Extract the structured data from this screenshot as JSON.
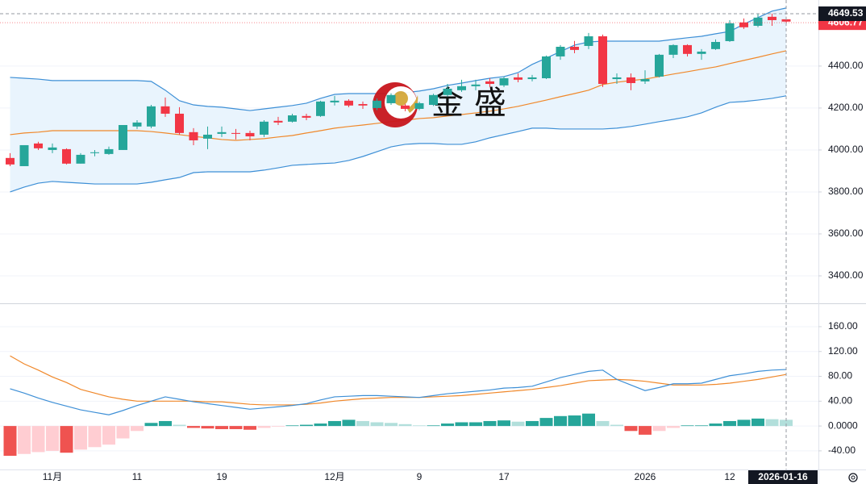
{
  "chart_data": [
    {
      "type": "candlestick",
      "open": [
        3962,
        3923,
        4031,
        4000,
        4004,
        3935,
        3985,
        3981,
        4000,
        4112,
        4112,
        4208,
        4173,
        4085,
        4054,
        4077,
        4081,
        4081,
        4073,
        4139,
        4135,
        4162,
        4162,
        4227,
        4235,
        4219,
        4200,
        4223,
        4212,
        4196,
        4215,
        4262,
        4285,
        4304,
        4327,
        4308,
        4346,
        4338,
        4342,
        4446,
        4492,
        4496,
        4542,
        4338,
        4346,
        4327,
        4350,
        4454,
        4500,
        4458,
        4481,
        4519,
        4608,
        4592,
        4635,
        4623
      ],
      "high": [
        3985,
        4023,
        4039,
        4031,
        4008,
        3985,
        4000,
        4016,
        4119,
        4142,
        4215,
        4250,
        4204,
        4104,
        4112,
        4112,
        4100,
        4092,
        4142,
        4158,
        4173,
        4173,
        4235,
        4258,
        4242,
        4231,
        4246,
        4270,
        4220,
        4230,
        4268,
        4315,
        4335,
        4335,
        4342,
        4350,
        4365,
        4358,
        4450,
        4500,
        4520,
        4558,
        4550,
        4365,
        4365,
        4380,
        4458,
        4504,
        4504,
        4481,
        4527,
        4619,
        4627,
        4650,
        4650,
        4635
      ],
      "low": [
        3923,
        3923,
        4000,
        3985,
        3931,
        3935,
        3970,
        3977,
        4000,
        4100,
        4104,
        4158,
        4073,
        4023,
        4004,
        4062,
        4050,
        4046,
        4062,
        4119,
        4131,
        4142,
        4158,
        4212,
        4204,
        4196,
        4190,
        4215,
        4185,
        4190,
        4210,
        4255,
        4277,
        4285,
        4300,
        4300,
        4323,
        4327,
        4338,
        4430,
        4461,
        4481,
        4300,
        4315,
        4285,
        4315,
        4346,
        4438,
        4446,
        4430,
        4477,
        4515,
        4577,
        4585,
        4592,
        4600
      ],
      "close": [
        3931,
        4023,
        4008,
        4012,
        3935,
        3977,
        3989,
        4004,
        4119,
        4131,
        4208,
        4173,
        4081,
        4046,
        4073,
        4085,
        4077,
        4065,
        4135,
        4131,
        4165,
        4154,
        4231,
        4235,
        4212,
        4212,
        4235,
        4262,
        4196,
        4223,
        4262,
        4292,
        4304,
        4312,
        4315,
        4342,
        4335,
        4346,
        4446,
        4492,
        4477,
        4542,
        4315,
        4346,
        4319,
        4338,
        4454,
        4500,
        4458,
        4469,
        4515,
        4604,
        4585,
        4631,
        4619,
        4612
      ],
      "upper": [
        4346,
        4342,
        4338,
        4331,
        4331,
        4331,
        4331,
        4331,
        4331,
        4331,
        4327,
        4285,
        4235,
        4215,
        4208,
        4204,
        4196,
        4188,
        4196,
        4204,
        4212,
        4223,
        4246,
        4265,
        4269,
        4269,
        4269,
        4269,
        4273,
        4281,
        4292,
        4308,
        4319,
        4331,
        4342,
        4350,
        4369,
        4408,
        4438,
        4469,
        4500,
        4515,
        4519,
        4519,
        4519,
        4519,
        4519,
        4527,
        4535,
        4542,
        4554,
        4565,
        4600,
        4631,
        4662,
        4677
      ],
      "middle": [
        4073,
        4081,
        4085,
        4092,
        4092,
        4092,
        4092,
        4092,
        4092,
        4092,
        4088,
        4081,
        4073,
        4065,
        4058,
        4050,
        4046,
        4050,
        4054,
        4062,
        4069,
        4081,
        4092,
        4104,
        4112,
        4119,
        4127,
        4135,
        4142,
        4150,
        4154,
        4162,
        4169,
        4177,
        4185,
        4196,
        4208,
        4223,
        4238,
        4254,
        4269,
        4285,
        4312,
        4323,
        4331,
        4338,
        4350,
        4362,
        4373,
        4385,
        4396,
        4412,
        4427,
        4442,
        4458,
        4473
      ],
      "lower": [
        3800,
        3823,
        3842,
        3850,
        3846,
        3842,
        3838,
        3838,
        3838,
        3838,
        3846,
        3858,
        3869,
        3892,
        3896,
        3896,
        3896,
        3896,
        3904,
        3915,
        3927,
        3931,
        3935,
        3938,
        3950,
        3969,
        3992,
        4015,
        4027,
        4031,
        4031,
        4027,
        4027,
        4039,
        4058,
        4073,
        4088,
        4104,
        4104,
        4100,
        4100,
        4100,
        4100,
        4104,
        4112,
        4123,
        4135,
        4146,
        4158,
        4177,
        4204,
        4227,
        4231,
        4238,
        4246,
        4258
      ],
      "up_color": "#26a69a",
      "down_color": "#f23645",
      "band_color": "#3d8fd6",
      "middle_color": "#f0882a",
      "band_fill": "#e9f4fd",
      "ylim": [
        3273,
        4715
      ],
      "yticks": [
        {
          "value": 4400,
          "label": "4400.00"
        },
        {
          "value": 4200,
          "label": "4200.00"
        },
        {
          "value": 4000,
          "label": "4000.00"
        },
        {
          "value": 3800,
          "label": "3800.00"
        },
        {
          "value": 3600,
          "label": "3600.00"
        },
        {
          "value": 3400,
          "label": "3400.00"
        }
      ],
      "grid": true,
      "crosshair_price": 4649.53,
      "last_price": 4606.77,
      "watermark": "金 盛"
    },
    {
      "type": "macd",
      "categories": [
        null,
        null,
        null,
        "11月",
        null,
        null,
        null,
        null,
        null,
        "11",
        null,
        null,
        null,
        null,
        null,
        "19",
        null,
        null,
        null,
        null,
        null,
        null,
        null,
        "12月",
        null,
        null,
        null,
        null,
        null,
        "9",
        null,
        null,
        null,
        null,
        null,
        "17",
        null,
        null,
        null,
        null,
        null,
        null,
        null,
        null,
        null,
        "2026",
        null,
        null,
        null,
        null,
        null,
        "12",
        null,
        null,
        null,
        null
      ],
      "crosshair_label": "2026-01-16",
      "dif": [
        60,
        53,
        45,
        38,
        32,
        26,
        22,
        18,
        25,
        33,
        40,
        47,
        43,
        39,
        36,
        33,
        30,
        27,
        29,
        31,
        33,
        36,
        42,
        47,
        48,
        49,
        49,
        48,
        47,
        46,
        49,
        52,
        54,
        56,
        58,
        61,
        62,
        64,
        71,
        78,
        83,
        88,
        90,
        75,
        66,
        57,
        62,
        68,
        68,
        69,
        75,
        81,
        84,
        88,
        90,
        91
      ],
      "dea": [
        113,
        100,
        90,
        79,
        70,
        59,
        53,
        47,
        43,
        40,
        40,
        40,
        40,
        40,
        39,
        39,
        37,
        35,
        34,
        34,
        34,
        35,
        37,
        40,
        42,
        44,
        45,
        46,
        46,
        46,
        47,
        48,
        49,
        51,
        53,
        55,
        57,
        59,
        62,
        65,
        69,
        73,
        74,
        75,
        74,
        72,
        69,
        66,
        66,
        66,
        67,
        69,
        72,
        75,
        79,
        83
      ],
      "histogram": [
        -48,
        -45,
        -42,
        -40,
        -43,
        -38,
        -34,
        -30,
        -20,
        -8,
        5,
        8,
        2,
        -3,
        -4,
        -5,
        -5,
        -6,
        -3,
        -1,
        1,
        2,
        4,
        8,
        10,
        8,
        6,
        5,
        3,
        1,
        1,
        4,
        6,
        6,
        8,
        9,
        7,
        8,
        13,
        16,
        17,
        20,
        8,
        2,
        -8,
        -14,
        -8,
        -3,
        1,
        1,
        4,
        8,
        10,
        12,
        11,
        10
      ],
      "dif_color": "#3d8fd6",
      "dea_color": "#f0882a",
      "hist_colors": {
        "up_strong": "#26a69a",
        "up_weak": "#b2dfdb",
        "down_strong": "#ef5350",
        "down_weak": "#ffcdd2"
      },
      "ylim": [
        -70,
        195
      ],
      "yticks": [
        {
          "value": 160,
          "label": "160.00"
        },
        {
          "value": 120,
          "label": "120.00"
        },
        {
          "value": 80,
          "label": "80.00"
        },
        {
          "value": 40,
          "label": "40.00"
        },
        {
          "value": 0,
          "label": "0.0000"
        },
        {
          "value": -40,
          "label": "-40.00"
        }
      ],
      "grid": true
    }
  ]
}
